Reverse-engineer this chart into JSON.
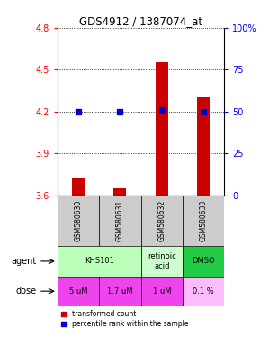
{
  "title": "GDS4912 / 1387074_at",
  "samples": [
    "GSM580630",
    "GSM580631",
    "GSM580632",
    "GSM580633"
  ],
  "bar_values": [
    3.73,
    3.65,
    4.55,
    4.3
  ],
  "dot_values": [
    4.2,
    4.2,
    4.21,
    4.2
  ],
  "ylim": [
    3.6,
    4.8
  ],
  "yticks_left": [
    3.6,
    3.9,
    4.2,
    4.5,
    4.8
  ],
  "yticks_right_labels": [
    "0",
    "25",
    "50",
    "75",
    "100%"
  ],
  "bar_color": "#cc0000",
  "dot_color": "#0000cc",
  "agent_groups": [
    {
      "label": "KHS101",
      "start": 0,
      "end": 2,
      "color": "#bbffbb"
    },
    {
      "label": "retinoic\nacid",
      "start": 2,
      "end": 3,
      "color": "#ccffcc"
    },
    {
      "label": "DMSO",
      "start": 3,
      "end": 4,
      "color": "#22cc44"
    }
  ],
  "dose_labels": [
    "5 uM",
    "1.7 uM",
    "1 uM",
    "0.1 %"
  ],
  "dose_colors": [
    "#ee44ee",
    "#ee44ee",
    "#ee44ee",
    "#ffbbff"
  ],
  "sample_bg": "#cccccc",
  "legend_red_label": "transformed count",
  "legend_blue_label": "percentile rank within the sample"
}
